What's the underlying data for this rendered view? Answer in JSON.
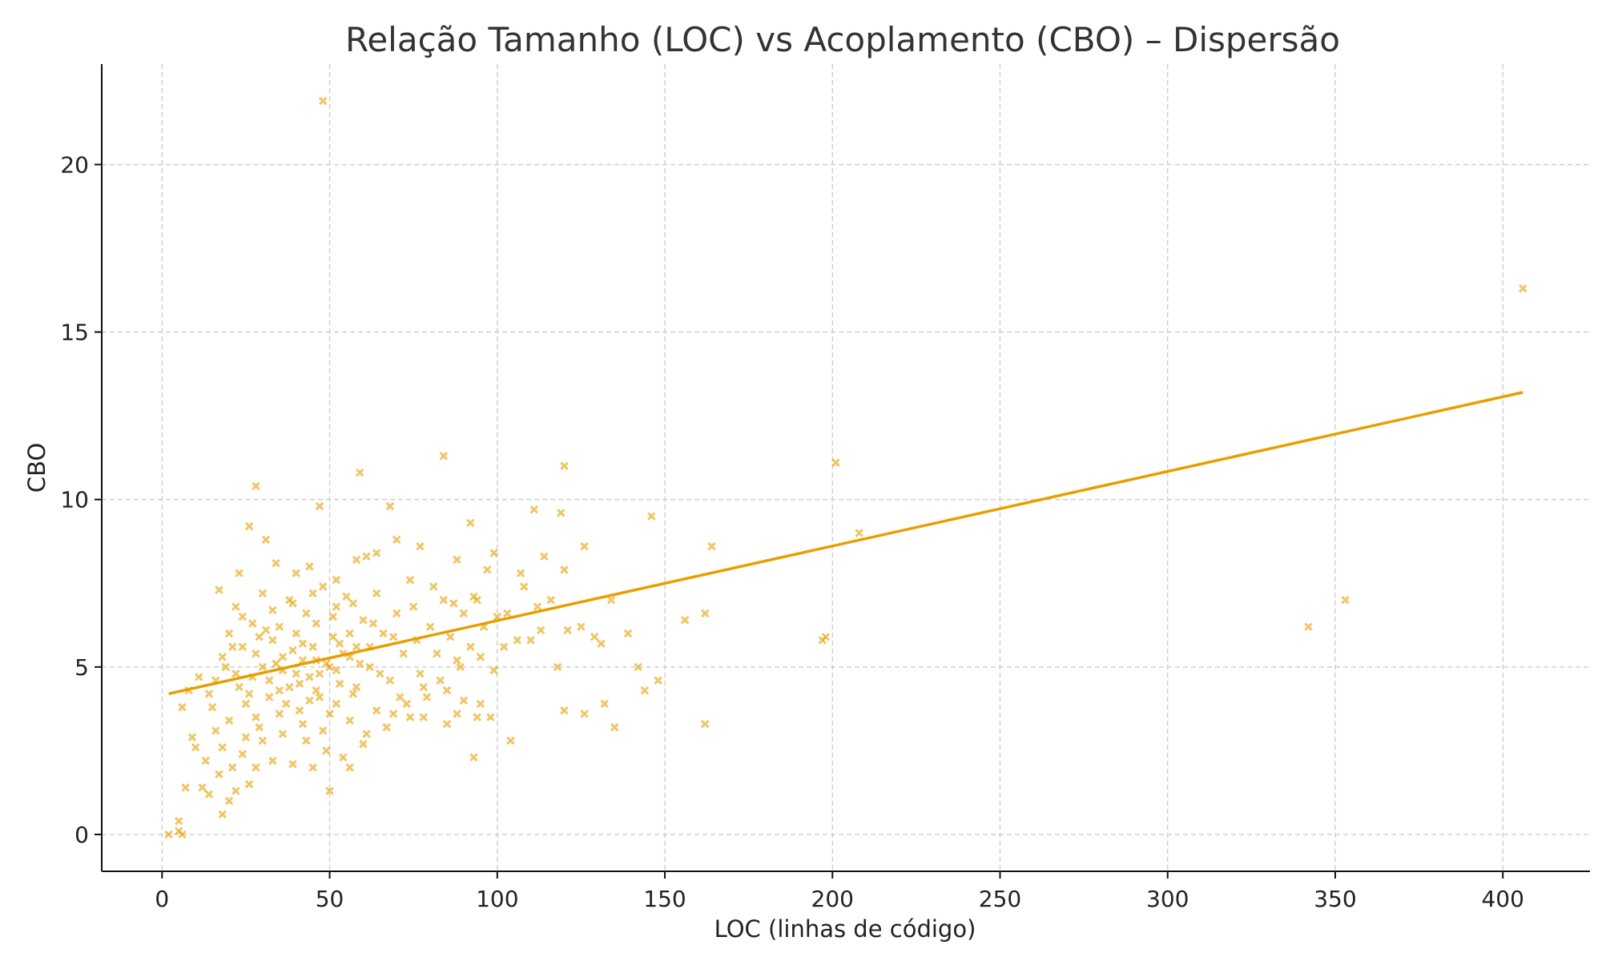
{
  "chart_data": {
    "type": "scatter",
    "title": "Relação Tamanho (LOC) vs Acoplamento (CBO) – Dispersão",
    "xlabel": "LOC (linhas de código)",
    "ylabel": "CBO",
    "xlim": [
      -18,
      426
    ],
    "ylim": [
      -1.1,
      23.0
    ],
    "xticks": [
      0,
      50,
      100,
      150,
      200,
      250,
      300,
      350,
      400
    ],
    "yticks": [
      0,
      5,
      10,
      15,
      20
    ],
    "grid": true,
    "legend": "none",
    "marker": "x",
    "color": "#E69F00",
    "series": [
      {
        "points": [
          [
            48,
            21.9
          ],
          [
            406,
            16.3
          ],
          [
            84,
            11.3
          ],
          [
            120,
            11.0
          ],
          [
            201,
            11.1
          ],
          [
            59,
            10.8
          ],
          [
            28,
            10.4
          ],
          [
            47,
            9.8
          ],
          [
            68,
            9.8
          ],
          [
            111,
            9.7
          ],
          [
            119,
            9.6
          ],
          [
            146,
            9.5
          ],
          [
            26,
            9.2
          ],
          [
            92,
            9.3
          ],
          [
            208,
            9.0
          ],
          [
            164,
            8.6
          ],
          [
            126,
            8.6
          ],
          [
            31,
            8.8
          ],
          [
            77,
            8.6
          ],
          [
            99,
            8.4
          ],
          [
            114,
            8.3
          ],
          [
            120,
            7.9
          ],
          [
            88,
            8.2
          ],
          [
            61,
            8.3
          ],
          [
            97,
            7.9
          ],
          [
            107,
            7.8
          ],
          [
            23,
            7.8
          ],
          [
            17,
            7.3
          ],
          [
            108,
            7.4
          ],
          [
            134,
            7.0
          ],
          [
            94,
            7.0
          ],
          [
            116,
            7.0
          ],
          [
            103,
            6.6
          ],
          [
            162,
            6.6
          ],
          [
            156,
            6.4
          ],
          [
            125,
            6.2
          ],
          [
            121,
            6.1
          ],
          [
            113,
            6.1
          ],
          [
            139,
            6.0
          ],
          [
            129,
            5.9
          ],
          [
            110,
            5.8
          ],
          [
            131,
            5.7
          ],
          [
            198,
            5.9
          ],
          [
            197,
            5.8
          ],
          [
            342,
            6.2
          ],
          [
            353,
            7.0
          ],
          [
            144,
            4.3
          ],
          [
            148,
            4.6
          ],
          [
            142,
            5.0
          ],
          [
            118,
            5.0
          ],
          [
            132,
            3.9
          ],
          [
            126,
            3.6
          ],
          [
            120,
            3.7
          ],
          [
            135,
            3.2
          ],
          [
            162,
            3.3
          ],
          [
            104,
            2.8
          ],
          [
            93,
            2.3
          ],
          [
            94,
            3.5
          ],
          [
            98,
            3.5
          ],
          [
            90,
            4.0
          ],
          [
            95,
            3.9
          ],
          [
            85,
            4.3
          ],
          [
            88,
            3.6
          ],
          [
            78,
            3.5
          ],
          [
            74,
            3.5
          ],
          [
            69,
            3.6
          ],
          [
            60,
            2.7
          ],
          [
            54,
            2.3
          ],
          [
            56,
            2.0
          ],
          [
            50,
            1.3
          ],
          [
            45,
            2.0
          ],
          [
            39,
            2.1
          ],
          [
            33,
            2.2
          ],
          [
            28,
            2.0
          ],
          [
            26,
            1.5
          ],
          [
            22,
            1.3
          ],
          [
            20,
            1.0
          ],
          [
            18,
            0.6
          ],
          [
            12,
            1.4
          ],
          [
            14,
            1.2
          ],
          [
            10,
            2.6
          ],
          [
            9,
            2.9
          ],
          [
            7,
            1.4
          ],
          [
            6,
            3.8
          ],
          [
            8,
            4.3
          ],
          [
            11,
            4.7
          ],
          [
            5,
            0.4
          ],
          [
            5,
            0.1
          ],
          [
            6,
            0.0
          ],
          [
            2,
            0.0
          ],
          [
            14,
            4.2
          ],
          [
            16,
            4.6
          ],
          [
            18,
            5.3
          ],
          [
            20,
            6.0
          ],
          [
            22,
            6.8
          ],
          [
            24,
            5.6
          ],
          [
            26,
            4.2
          ],
          [
            28,
            3.5
          ],
          [
            30,
            5.0
          ],
          [
            32,
            4.6
          ],
          [
            33,
            5.8
          ],
          [
            35,
            6.2
          ],
          [
            36,
            4.9
          ],
          [
            37,
            3.9
          ],
          [
            38,
            7.0
          ],
          [
            39,
            5.5
          ],
          [
            40,
            6.0
          ],
          [
            41,
            4.5
          ],
          [
            42,
            5.2
          ],
          [
            43,
            6.6
          ],
          [
            44,
            4.0
          ],
          [
            45,
            5.6
          ],
          [
            46,
            6.3
          ],
          [
            47,
            4.8
          ],
          [
            48,
            7.4
          ],
          [
            49,
            5.1
          ],
          [
            50,
            3.6
          ],
          [
            51,
            5.9
          ],
          [
            52,
            6.8
          ],
          [
            53,
            4.5
          ],
          [
            54,
            5.4
          ],
          [
            55,
            7.1
          ],
          [
            56,
            6.0
          ],
          [
            57,
            4.2
          ],
          [
            58,
            5.6
          ],
          [
            60,
            6.4
          ],
          [
            62,
            5.0
          ],
          [
            64,
            7.2
          ],
          [
            66,
            6.0
          ],
          [
            68,
            4.6
          ],
          [
            70,
            6.6
          ],
          [
            72,
            5.4
          ],
          [
            74,
            7.6
          ],
          [
            76,
            5.8
          ],
          [
            78,
            4.4
          ],
          [
            80,
            6.2
          ],
          [
            82,
            5.4
          ],
          [
            84,
            7.0
          ],
          [
            86,
            5.9
          ],
          [
            88,
            5.2
          ],
          [
            90,
            6.6
          ],
          [
            92,
            5.6
          ],
          [
            96,
            6.2
          ],
          [
            100,
            6.5
          ],
          [
            102,
            5.6
          ],
          [
            106,
            5.8
          ],
          [
            112,
            6.8
          ],
          [
            34,
            8.1
          ],
          [
            40,
            7.8
          ],
          [
            44,
            8.0
          ],
          [
            52,
            7.6
          ],
          [
            58,
            8.2
          ],
          [
            64,
            8.4
          ],
          [
            70,
            8.8
          ],
          [
            30,
            7.2
          ],
          [
            24,
            6.5
          ],
          [
            22,
            4.8
          ],
          [
            20,
            3.4
          ],
          [
            18,
            2.6
          ],
          [
            16,
            3.1
          ],
          [
            24,
            2.4
          ],
          [
            30,
            2.8
          ],
          [
            36,
            3.0
          ],
          [
            42,
            3.3
          ],
          [
            48,
            3.1
          ],
          [
            56,
            3.4
          ],
          [
            64,
            3.7
          ],
          [
            32,
            4.1
          ],
          [
            38,
            4.4
          ],
          [
            44,
            4.7
          ],
          [
            50,
            5.0
          ],
          [
            56,
            5.3
          ],
          [
            62,
            5.6
          ],
          [
            36,
            5.3
          ],
          [
            42,
            5.7
          ],
          [
            46,
            5.2
          ],
          [
            52,
            4.9
          ],
          [
            28,
            5.4
          ],
          [
            34,
            5.1
          ],
          [
            40,
            4.8
          ],
          [
            46,
            4.3
          ],
          [
            52,
            3.9
          ],
          [
            58,
            4.4
          ],
          [
            27,
            6.3
          ],
          [
            33,
            6.7
          ],
          [
            39,
            6.9
          ],
          [
            45,
            7.2
          ],
          [
            51,
            6.5
          ],
          [
            57,
            6.9
          ],
          [
            63,
            6.3
          ],
          [
            69,
            5.9
          ],
          [
            75,
            6.8
          ],
          [
            81,
            7.4
          ],
          [
            87,
            6.9
          ],
          [
            93,
            7.1
          ],
          [
            19,
            5.0
          ],
          [
            21,
            5.6
          ],
          [
            23,
            4.4
          ],
          [
            25,
            3.9
          ],
          [
            27,
            4.7
          ],
          [
            29,
            5.9
          ],
          [
            31,
            6.1
          ],
          [
            35,
            4.3
          ],
          [
            41,
            3.7
          ],
          [
            47,
            4.1
          ],
          [
            53,
            5.7
          ],
          [
            59,
            5.1
          ],
          [
            65,
            4.8
          ],
          [
            71,
            4.1
          ],
          [
            77,
            4.8
          ],
          [
            83,
            4.6
          ],
          [
            89,
            5.0
          ],
          [
            95,
            5.3
          ],
          [
            99,
            4.9
          ],
          [
            15,
            3.8
          ],
          [
            13,
            2.2
          ],
          [
            17,
            1.8
          ],
          [
            21,
            2.0
          ],
          [
            25,
            2.9
          ],
          [
            29,
            3.2
          ],
          [
            35,
            3.6
          ],
          [
            43,
            2.8
          ],
          [
            49,
            2.5
          ],
          [
            61,
            3.0
          ],
          [
            67,
            3.2
          ],
          [
            73,
            3.9
          ],
          [
            79,
            4.1
          ],
          [
            85,
            3.3
          ]
        ]
      }
    ],
    "trendline": {
      "x": [
        2,
        406
      ],
      "y": [
        4.2,
        13.2
      ]
    }
  }
}
